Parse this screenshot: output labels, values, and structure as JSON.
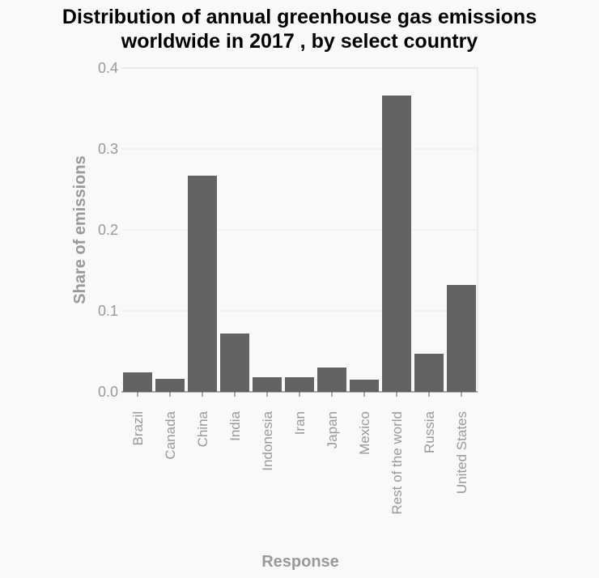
{
  "chart_data": {
    "type": "bar",
    "title": "Distribution of annual greenhouse gas emissions\nworldwide in 2017 , by select country",
    "xlabel": "Response",
    "ylabel": "Share of emissions",
    "categories": [
      "Brazil",
      "Canada",
      "China",
      "India",
      "Indonesia",
      "Iran",
      "Japan",
      "Mexico",
      "Rest of the world",
      "Russia",
      "United States"
    ],
    "values": [
      0.024,
      0.016,
      0.267,
      0.072,
      0.018,
      0.018,
      0.03,
      0.015,
      0.366,
      0.047,
      0.132
    ],
    "ylim": [
      0,
      0.4
    ],
    "yticks": [
      0.0,
      0.1,
      0.2,
      0.3,
      0.4
    ],
    "ytick_labels": [
      "0.0",
      "0.1",
      "0.2",
      "0.3",
      "0.4"
    ],
    "grid": true,
    "legend": "none",
    "colors": {
      "bar": "#636363",
      "axis_text": "#999999",
      "grid": "#ececec",
      "frame": "#dddddd",
      "axis": "#555555",
      "background": "#f9f9f9",
      "title": "#000000"
    }
  }
}
